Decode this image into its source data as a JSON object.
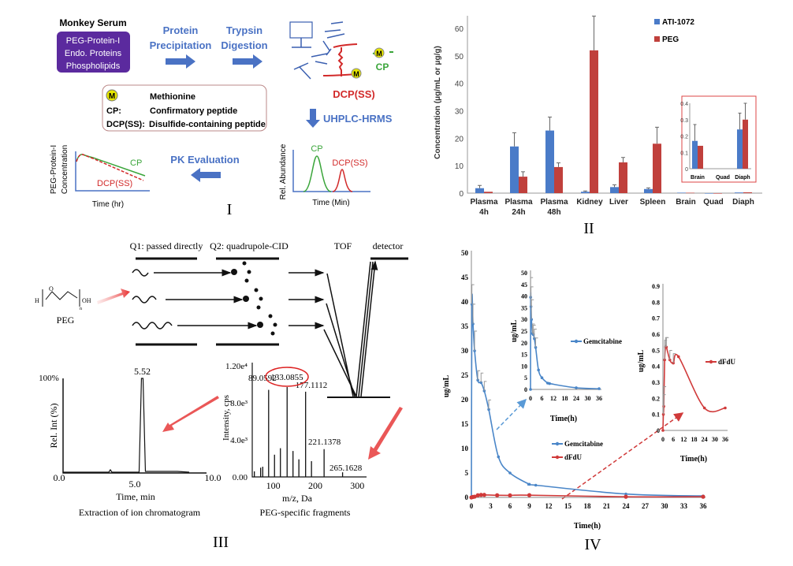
{
  "panel_I": {
    "numeral": "I",
    "sample_title": "Monkey Serum",
    "sample_lines": [
      "PEG-Protein-I",
      "Endo. Proteins",
      "Phospholipids"
    ],
    "step1": [
      "Protein",
      "Precipitation"
    ],
    "step2": [
      "Trypsin",
      "Digestion"
    ],
    "peg_label": "PEG",
    "m_symbol": "M",
    "cp_label": "CP",
    "dcp_label": "DCP(SS)",
    "legend": [
      {
        "key": "M",
        "desc": "Methionine"
      },
      {
        "key": "CP:",
        "desc": "Confirmatory peptide"
      },
      {
        "key": "DCP(SS):",
        "desc": "Disulfide-containing peptide"
      }
    ],
    "step3": "UHPLC-HRMS",
    "chrom_ylabel": "Rel. Abundance",
    "chrom_xlabel": "Time (Min)",
    "step4": "PK Evaluation",
    "pk_ylabel": [
      "PEG-Protein-I",
      "Concentration"
    ],
    "pk_xlabel": "Time (hr)",
    "colors": {
      "purple": "#5b2a9e",
      "blue": "#4a72c4",
      "red": "#d22a2a",
      "green": "#3aa53a"
    }
  },
  "chart_data": [
    {
      "id": "II",
      "type": "bar",
      "numeral": "II",
      "ylabel": "Concentration (μg/mL or μg/g)",
      "ylim": [
        0,
        65
      ],
      "yticks": [
        0,
        10,
        20,
        30,
        40,
        50,
        60
      ],
      "categories": [
        [
          "Plasma",
          "4h"
        ],
        [
          "Plasma",
          "24h"
        ],
        [
          "Plasma",
          "48h"
        ],
        [
          "Kidney"
        ],
        [
          "Liver"
        ],
        [
          "Spleen"
        ],
        [
          "Brain"
        ],
        [
          "Quad"
        ],
        [
          "Diaph"
        ]
      ],
      "series": [
        {
          "name": "ATI-1072",
          "color": "#4a7bc8",
          "values": [
            1.8,
            17,
            22.8,
            0.5,
            2.2,
            1.5,
            0.17,
            0,
            0.24
          ],
          "err": [
            2.8,
            22,
            27.7,
            0.8,
            3,
            1.9,
            0.27,
            0,
            0.34
          ]
        },
        {
          "name": "PEG",
          "color": "#c0403c",
          "values": [
            0.5,
            6,
            9.5,
            52,
            11.2,
            18,
            0.14,
            0,
            0.3
          ],
          "err": [
            0.6,
            7.8,
            11,
            64.5,
            13,
            24,
            0.14,
            0,
            0.4
          ]
        }
      ],
      "legend": "top-right",
      "inset": {
        "categories": [
          "Brain",
          "Quad",
          "Diaph"
        ],
        "ylim": [
          0,
          0.4
        ],
        "yticks": [
          "0",
          "0.1",
          "0.2",
          "0.3",
          "0.4"
        ]
      }
    },
    {
      "id": "III-chromatogram",
      "type": "line",
      "title": "Extraction of ion chromatogram",
      "xlabel": "Time, min",
      "ylabel": "Rel. Int (%)",
      "xlim": [
        0,
        10
      ],
      "xticks": [
        "0.0",
        "5.0",
        "10.0"
      ],
      "ytop_label": "100%",
      "peak": {
        "x": 5.52,
        "label": "5.52"
      }
    },
    {
      "id": "III-spectrum",
      "type": "bar",
      "title": "PEG-specific fragments",
      "xlabel": "m/z, Da",
      "ylabel": "Intensity, cps",
      "xlim": [
        50,
        315
      ],
      "xticks": [
        100,
        200,
        300
      ],
      "ylim": [
        0,
        12000
      ],
      "yticks": [
        "0.00",
        "4.0e³",
        "8.0e³",
        "1.20e⁴"
      ],
      "peaks": [
        [
          55,
          600
        ],
        [
          70,
          1000
        ],
        [
          75,
          1100
        ],
        [
          89,
          9400
        ],
        [
          103,
          2400
        ],
        [
          117,
          3100
        ],
        [
          133,
          9700
        ],
        [
          147,
          2800
        ],
        [
          161,
          1900
        ],
        [
          177,
          9200
        ],
        [
          191,
          1700
        ],
        [
          221,
          3000
        ],
        [
          265,
          500
        ]
      ],
      "labels": [
        "89.0592",
        "133.0855",
        "177.1112",
        "221.1378",
        "265.1628"
      ]
    },
    {
      "id": "IV",
      "type": "line",
      "numeral": "IV",
      "xlabel": "Time(h)",
      "ylabel": "ug/mL",
      "xlim": [
        0,
        36
      ],
      "xticks": [
        0,
        3,
        6,
        9,
        12,
        15,
        18,
        21,
        24,
        27,
        30,
        33,
        36
      ],
      "ylim": [
        0,
        50
      ],
      "yticks": [
        0,
        5,
        10,
        15,
        20,
        25,
        30,
        35,
        40,
        45,
        50
      ],
      "series": [
        {
          "name": "Gemcitabine",
          "color": "#4a86c8",
          "points": [
            [
              0,
              0
            ],
            [
              0.08,
              39.5
            ],
            [
              0.25,
              35.5
            ],
            [
              0.5,
              30
            ],
            [
              1,
              24
            ],
            [
              1.5,
              23.5
            ],
            [
              2,
              21.8
            ],
            [
              2.7,
              18
            ],
            [
              4.2,
              8.3
            ],
            [
              6,
              5
            ],
            [
              9,
              2.7
            ],
            [
              10,
              2.5
            ],
            [
              24,
              0.7
            ],
            [
              36,
              0.3
            ]
          ]
        },
        {
          "name": "dFdU",
          "color": "#d03a3a",
          "points": [
            [
              0,
              0
            ],
            [
              0.25,
              0.1
            ],
            [
              0.5,
              0.15
            ],
            [
              1,
              0.44
            ],
            [
              1.5,
              0.52
            ],
            [
              2,
              0.52
            ],
            [
              4,
              0.44
            ],
            [
              6,
              0.42
            ],
            [
              9,
              0.46
            ],
            [
              24,
              0.14
            ],
            [
              36,
              0.14
            ]
          ]
        }
      ],
      "insets": [
        {
          "series": "Gemcitabine",
          "xlabel": "Time(h)",
          "ylabel": "ug/mL",
          "xticks": [
            0,
            6,
            12,
            18,
            24,
            30,
            36
          ],
          "ylim": [
            0,
            50
          ],
          "yticks": [
            0,
            5,
            10,
            15,
            20,
            25,
            30,
            35,
            40,
            45,
            50
          ],
          "ytick_labels": [
            "0",
            "5",
            "10",
            "15",
            "20",
            "25",
            "30",
            "35",
            "40",
            "45",
            "50"
          ]
        },
        {
          "series": "dFdU",
          "xlabel": "Time(h)",
          "ylabel": "ug/mL",
          "xticks": [
            0,
            6,
            12,
            18,
            24,
            30,
            36
          ],
          "ylim": [
            0,
            0.9
          ],
          "yticks": [
            0,
            0.1,
            0.2,
            0.3,
            0.4,
            0.5,
            0.6,
            0.7,
            0.8,
            0.9
          ],
          "ytick_labels": [
            "0",
            "0.1",
            "0.2",
            "0.3",
            "0.4",
            "0.5",
            "0.6",
            "0.7",
            "0.8",
            "0.9"
          ]
        }
      ]
    }
  ],
  "panel_III": {
    "numeral": "III",
    "q1": "Q1: passed directly",
    "q2": "Q2: quadrupole-CID",
    "tof": "TOF",
    "detector": "detector",
    "peg_name": "PEG",
    "peg_atoms": {
      "h": "H",
      "o": "O",
      "oh": "OH",
      "n": "n"
    }
  }
}
